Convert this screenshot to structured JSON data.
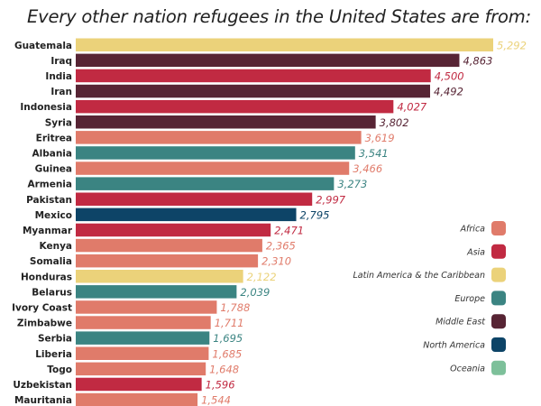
{
  "chart_data": {
    "type": "bar",
    "orientation": "horizontal",
    "title": "Every other nation refugees in the United States are from:",
    "xlabel": "",
    "ylabel": "",
    "xlim": [
      0,
      5292
    ],
    "grid": false,
    "legend_position": "right",
    "categories": [
      "Guatemala",
      "Iraq",
      "India",
      "Iran",
      "Indonesia",
      "Syria",
      "Eritrea",
      "Albania",
      "Guinea",
      "Armenia",
      "Pakistan",
      "Mexico",
      "Myanmar",
      "Kenya",
      "Somalia",
      "Honduras",
      "Belarus",
      "Ivory Coast",
      "Zimbabwe",
      "Serbia",
      "Liberia",
      "Togo",
      "Uzbekistan",
      "Mauritania"
    ],
    "values": [
      5292,
      4863,
      4500,
      4492,
      4027,
      3802,
      3619,
      3541,
      3466,
      3273,
      2997,
      2795,
      2471,
      2365,
      2310,
      2122,
      2039,
      1788,
      1711,
      1695,
      1685,
      1648,
      1596,
      1544
    ],
    "value_labels": [
      "5,292",
      "4,863",
      "4,500",
      "4,492",
      "4,027",
      "3,802",
      "3,619",
      "3,541",
      "3,466",
      "3,273",
      "2,997",
      "2,795",
      "2,471",
      "2,365",
      "2,310",
      "2,122",
      "2,039",
      "1,788",
      "1,711",
      "1,695",
      "1,685",
      "1,648",
      "1,596",
      "1,544"
    ],
    "regions": [
      "Latin America & the Caribbean",
      "Middle East",
      "Asia",
      "Middle East",
      "Asia",
      "Middle East",
      "Africa",
      "Europe",
      "Africa",
      "Europe",
      "Asia",
      "North America",
      "Asia",
      "Africa",
      "Africa",
      "Latin America & the Caribbean",
      "Europe",
      "Africa",
      "Africa",
      "Europe",
      "Africa",
      "Africa",
      "Asia",
      "Africa"
    ],
    "legend": [
      {
        "label": "Africa",
        "color": "#e07b6a"
      },
      {
        "label": "Asia",
        "color": "#c12a42"
      },
      {
        "label": "Latin America & the Caribbean",
        "color": "#ebd27a"
      },
      {
        "label": "Europe",
        "color": "#3b8482"
      },
      {
        "label": "Middle East",
        "color": "#572434"
      },
      {
        "label": "North America",
        "color": "#0d4467"
      },
      {
        "label": "Oceania",
        "color": "#7dc09a"
      }
    ]
  }
}
